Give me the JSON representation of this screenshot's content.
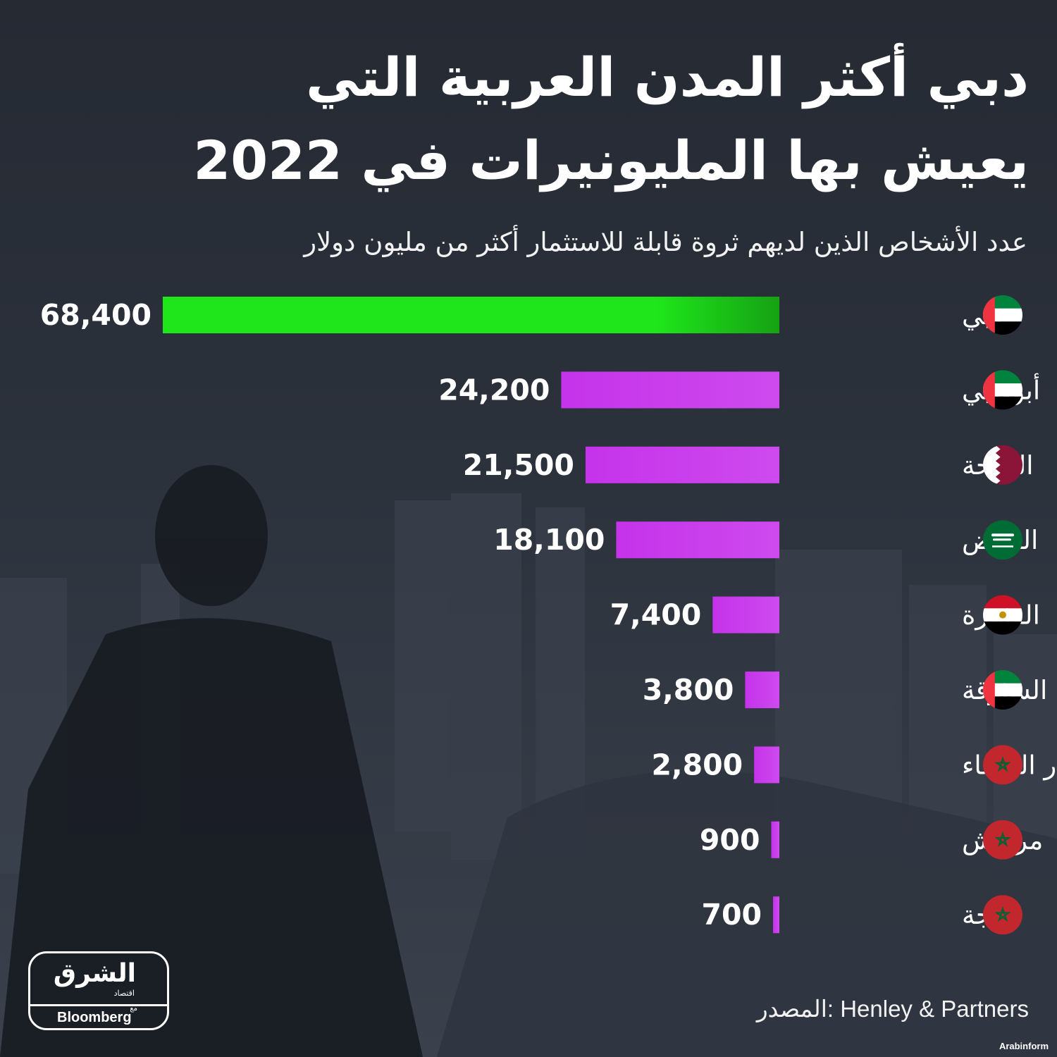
{
  "title_line_1": "دبي أكثر المدن العربية التي",
  "title_line_2": "يعيش بها المليونيرات في 2022",
  "subtitle": "عدد الأشخاص الذين لديهم ثروة قابلة للاستثمار أكثر من مليون دولار",
  "colors": {
    "highlight": "#1ee61a",
    "highlight_dark": "#16a214",
    "bar": "#c533ea",
    "bar_light": "#ce4aee",
    "background": "#252a33"
  },
  "chart_data": {
    "type": "bar",
    "orientation": "horizontal",
    "categories": [
      "دبي",
      "أبوظبي",
      "الدوحة",
      "الرياض",
      "القاهرة",
      "الشارقة",
      "الدار البيضاء",
      "مراكش",
      "طنجة"
    ],
    "values": [
      68400,
      24200,
      21500,
      18100,
      7400,
      3800,
      2800,
      900,
      700
    ],
    "value_labels": [
      "68,400",
      "24,200",
      "21,500",
      "18,100",
      "7,400",
      "3,800",
      "2,800",
      "900",
      "700"
    ],
    "flags": [
      "uae-flag-icon",
      "uae-flag-icon",
      "qatar-flag-icon",
      "saudi-flag-icon",
      "egypt-flag-icon",
      "uae-flag-icon",
      "morocco-flag-icon",
      "morocco-flag-icon",
      "morocco-flag-icon"
    ],
    "highlighted_category": "دبي",
    "xlim": [
      0,
      68400
    ],
    "grid": false
  },
  "footer": {
    "source": "المصدر: Henley & Partners"
  },
  "logo": {
    "main": "الشرق",
    "sub": "اقتصاد",
    "with": "مع",
    "partner": "Bloomberg"
  },
  "watermark": "Arabinform"
}
